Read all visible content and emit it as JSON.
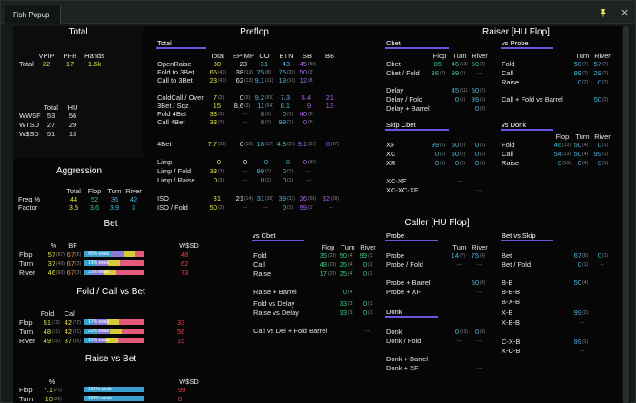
{
  "window": {
    "tab_title": "Fish Popup",
    "close_glyph": "×"
  },
  "total": {
    "header": "Total",
    "cols": [
      "VPIP",
      "PFR",
      "Hands"
    ],
    "row_label": "Total",
    "vpip": "22",
    "pfr": "17",
    "hands": "1.6k",
    "cols2": [
      "Total",
      "HU"
    ],
    "rows": [
      {
        "label": "WWSF",
        "total": "53",
        "hu": "56"
      },
      {
        "label": "WTSD",
        "total": "27",
        "hu": "29"
      },
      {
        "label": "W$SD",
        "total": "51",
        "hu": "13"
      }
    ]
  },
  "aggression": {
    "header": "Aggression",
    "cols": [
      "Total",
      "Flop",
      "Turn",
      "River"
    ],
    "rows": [
      {
        "label": "Freq %",
        "v": [
          "44",
          "52",
          "36",
          "42"
        ]
      },
      {
        "label": "Factor",
        "v": [
          "3.5",
          "3.6",
          "3.9",
          "3"
        ]
      }
    ]
  },
  "bet": {
    "header": "Bet",
    "cols": [
      "%",
      "BF",
      "W$SD"
    ],
    "rows": [
      {
        "label": "Flop",
        "pct": "57",
        "pct_n": "(87)",
        "bf": "67",
        "bf_n": "(6)",
        "bar": "45% weak",
        "wsd": "48",
        "fill": 0.45
      },
      {
        "label": "Turn",
        "pct": "37",
        "pct_n": "(49)",
        "bf": "67",
        "bf_n": "(3)",
        "bar": "19% weak",
        "wsd": "62",
        "fill": 0.19
      },
      {
        "label": "River",
        "pct": "46",
        "pct_n": "(60)",
        "bf": "67",
        "bf_n": "(3)",
        "bar": "13% weak",
        "wsd": "73",
        "fill": 0.13
      }
    ]
  },
  "fcb": {
    "header": "Fold / Call vs Bet",
    "cols": [
      "Fold",
      "Call"
    ],
    "rows": [
      {
        "label": "Flop",
        "fold": "51",
        "fold_n": "(72)",
        "call": "42",
        "call_n": "(72)",
        "bar": "17% weak",
        "wsd": "33",
        "fill": 0.17
      },
      {
        "label": "Turn",
        "fold": "48",
        "fold_n": "(31)",
        "call": "42",
        "call_n": "(31)",
        "bar": "22% weak",
        "wsd": "56",
        "fill": 0.22
      },
      {
        "label": "River",
        "fold": "49",
        "fold_n": "(35)",
        "call": "37",
        "call_n": "(35)",
        "bar": "15% weak",
        "wsd": "15",
        "fill": 0.15
      }
    ]
  },
  "rvb": {
    "header": "Raise vs Bet",
    "cols": [
      "%",
      "W$SD"
    ],
    "rows": [
      {
        "label": "Flop",
        "pct": "7.1",
        "pct_n": "(71)",
        "bar": "100% weak",
        "wsd": "99",
        "fill": 1.0
      },
      {
        "label": "Turn",
        "pct": "10",
        "pct_n": "(30)",
        "bar": "100% weak",
        "wsd": "0",
        "fill": 1.0
      }
    ]
  },
  "preflop": {
    "header": "Preflop",
    "tab": "Total",
    "cols": [
      "Total",
      "EP-MP",
      "CO",
      "BTN",
      "SB",
      "BB"
    ],
    "rows": [
      {
        "label": "OpenRaise",
        "v": [
          [
            "30",
            ""
          ],
          [
            "23",
            ""
          ],
          [
            "31",
            ""
          ],
          [
            "43",
            ""
          ],
          [
            "45",
            "(58)"
          ],
          [
            "",
            ""
          ]
        ]
      },
      {
        "label": "Fold to 3Bet",
        "v": [
          [
            "65",
            "(43)"
          ],
          [
            "38",
            "(13)"
          ],
          [
            "75",
            "(8)"
          ],
          [
            "75",
            "(20)"
          ],
          [
            "50",
            "(2)"
          ],
          [
            "",
            ""
          ]
        ]
      },
      {
        "label": "Call to 3Bet",
        "v": [
          [
            "23",
            "(43)"
          ],
          [
            "62",
            "(13)"
          ],
          [
            "9.1",
            "(11)"
          ],
          [
            "19",
            "(16)"
          ],
          [
            "12",
            "(8)"
          ],
          [
            "",
            ""
          ]
        ]
      },
      {
        "label": "ColdCall / Over",
        "v": [
          [
            "7",
            "(3)"
          ],
          [
            "0",
            "(3)"
          ],
          [
            "9.2",
            "(65)"
          ],
          [
            "7.3",
            ""
          ],
          [
            "5.4",
            ""
          ],
          [
            "21",
            ""
          ]
        ]
      },
      {
        "label": "3Bet / Sqz",
        "v": [
          [
            "15",
            ""
          ],
          [
            "8.6",
            "(3)"
          ],
          [
            "11",
            "(64)"
          ],
          [
            "8.1",
            ""
          ],
          [
            "9",
            ""
          ],
          [
            "13",
            ""
          ]
        ]
      },
      {
        "label": "Fold 4Bet",
        "v": [
          [
            "33",
            "(3)"
          ],
          [
            "--",
            ""
          ],
          [
            "0",
            "(1)"
          ],
          [
            "0",
            "(1)"
          ],
          [
            "40",
            "(5)"
          ],
          [
            "",
            ""
          ]
        ]
      },
      {
        "label": "Call 4Bet",
        "v": [
          [
            "33",
            "(3)"
          ],
          [
            "--",
            ""
          ],
          [
            "0",
            "(1)"
          ],
          [
            "99",
            "(1)"
          ],
          [
            "0",
            "(5)"
          ],
          [
            "",
            ""
          ]
        ]
      },
      {
        "label": "4Bet",
        "v": [
          [
            "7.7",
            "(52)"
          ],
          [
            "0",
            "(10)"
          ],
          [
            "18",
            "(17)"
          ],
          [
            "4.8",
            "(21)"
          ],
          [
            "9.1",
            "(22)"
          ],
          [
            "0",
            "(37)"
          ]
        ]
      },
      {
        "label": "Limp",
        "v": [
          [
            "0",
            ""
          ],
          [
            "0",
            ""
          ],
          [
            "0",
            ""
          ],
          [
            "0",
            ""
          ],
          [
            "0",
            "(35)"
          ],
          [
            "",
            ""
          ]
        ]
      },
      {
        "label": "Limp / Fold",
        "v": [
          [
            "33",
            "(3)"
          ],
          [
            "--",
            ""
          ],
          [
            "99",
            "(1)"
          ],
          [
            "0",
            "(1)"
          ],
          [
            "--",
            ""
          ],
          [
            "",
            ""
          ]
        ]
      },
      {
        "label": "Limp / Raise",
        "v": [
          [
            "0",
            "(3)"
          ],
          [
            "--",
            ""
          ],
          [
            "0",
            "(1)"
          ],
          [
            "0",
            "(1)"
          ],
          [
            "--",
            ""
          ],
          [
            "",
            ""
          ]
        ]
      },
      {
        "label": "ISO",
        "v": [
          [
            "31",
            ""
          ],
          [
            "21",
            "(14)"
          ],
          [
            "31",
            "(36)"
          ],
          [
            "39",
            "(33)"
          ],
          [
            "26",
            "(50)"
          ],
          [
            "32",
            "(38)"
          ]
        ]
      },
      {
        "label": "ISO / Fold",
        "v": [
          [
            "50",
            "(2)"
          ],
          [
            "--",
            ""
          ],
          [
            "--",
            ""
          ],
          [
            "0",
            "(1)"
          ],
          [
            "99",
            "(1)"
          ],
          [
            "--",
            ""
          ]
        ]
      }
    ]
  },
  "raiser": {
    "header": "Raiser [HU Flop]",
    "cols": [
      "Flop",
      "Turn",
      "River"
    ],
    "cbet": {
      "title": "Cbet",
      "rows": [
        {
          "label": "Cbet",
          "v": [
            [
              "85",
              ""
            ],
            [
              "46",
              "(13)"
            ],
            [
              "50",
              "(4)"
            ]
          ]
        },
        {
          "label": "Cbet / Fold",
          "v": [
            [
              "86",
              "(7)"
            ],
            [
              "99",
              "(1)"
            ],
            [
              "--",
              ""
            ]
          ]
        }
      ]
    },
    "delay": {
      "rows": [
        {
          "label": "Delay",
          "v": [
            [
              "",
              ""
            ],
            [
              "45",
              "(11)"
            ],
            [
              "50",
              "(2)"
            ]
          ]
        },
        {
          "label": "Delay / Fold",
          "v": [
            [
              "",
              ""
            ],
            [
              "0",
              "(1)"
            ],
            [
              "99",
              "(1)"
            ]
          ]
        },
        {
          "label": "Delay + Barrel",
          "v": [
            [
              "",
              ""
            ],
            [
              "",
              ""
            ],
            [
              "0",
              "(3)"
            ]
          ]
        }
      ]
    },
    "skip": {
      "title": "Skip Cbet",
      "rows": [
        {
          "label": "XF",
          "v": [
            [
              "99",
              "(1)"
            ],
            [
              "50",
              "(2)"
            ],
            [
              "0",
              "(1)"
            ]
          ]
        },
        {
          "label": "XC",
          "v": [
            [
              "0",
              "(1)"
            ],
            [
              "50",
              "(2)"
            ],
            [
              "0",
              "(1)"
            ]
          ]
        },
        {
          "label": "XR",
          "v": [
            [
              "0",
              "(1)"
            ],
            [
              "0",
              "(2)"
            ],
            [
              "0",
              "(1)"
            ]
          ]
        },
        {
          "label": "XC-XF",
          "v": [
            [
              "",
              ""
            ],
            [
              "--",
              ""
            ],
            [
              "",
              ""
            ]
          ]
        },
        {
          "label": "XC-XC-XF",
          "v": [
            [
              "",
              ""
            ],
            [
              "",
              ""
            ],
            [
              "--",
              ""
            ]
          ]
        }
      ]
    },
    "probe": {
      "title": "vs Probe",
      "cols": [
        "Turn",
        "River"
      ],
      "rows": [
        {
          "label": "Fold",
          "v": [
            [
              "50",
              "(7)"
            ],
            [
              "57",
              "(7)"
            ]
          ]
        },
        {
          "label": "Call",
          "v": [
            [
              "99",
              "(7)"
            ],
            [
              "29",
              "(7)"
            ]
          ]
        },
        {
          "label": "Raise",
          "v": [
            [
              "0",
              "(7)"
            ],
            [
              "0",
              "(7)"
            ]
          ]
        },
        {
          "label": "Call + Fold vs Barrel",
          "v": [
            [
              "",
              ""
            ],
            [
              "50",
              "(2)"
            ]
          ]
        }
      ]
    },
    "donk": {
      "title": "vs Donk",
      "cols": [
        "Flop",
        "Turn",
        "River"
      ],
      "rows": [
        {
          "label": "Fold",
          "v": [
            [
              "46",
              "(13)"
            ],
            [
              "50",
              "(4)"
            ],
            [
              "0",
              "(1)"
            ]
          ]
        },
        {
          "label": "Call",
          "v": [
            [
              "54",
              "(13)"
            ],
            [
              "50",
              "(4)"
            ],
            [
              "99",
              "(1)"
            ]
          ]
        },
        {
          "label": "Raise",
          "v": [
            [
              "0",
              "(13)"
            ],
            [
              "0",
              "(4)"
            ],
            [
              "0",
              "(1)"
            ]
          ]
        }
      ]
    }
  },
  "caller": {
    "header": "Caller [HU Flop]",
    "vscbet": {
      "title": "vs Cbet",
      "cols": [
        "Flop",
        "Turn",
        "River"
      ],
      "rows": [
        {
          "label": "Fold",
          "v": [
            [
              "35",
              "(23)"
            ],
            [
              "50",
              "(4)"
            ],
            [
              "99",
              "(1)"
            ]
          ]
        },
        {
          "label": "Call",
          "v": [
            [
              "48",
              "(23)"
            ],
            [
              "25",
              "(4)"
            ],
            [
              "0",
              "(1)"
            ]
          ]
        },
        {
          "label": "Raise",
          "v": [
            [
              "17",
              "(23)"
            ],
            [
              "25",
              "(4)"
            ],
            [
              "0",
              "(1)"
            ]
          ]
        },
        {
          "label": "Raise + Barrel",
          "v": [
            [
              "",
              ""
            ],
            [
              "0",
              "(4)"
            ],
            [
              "",
              ""
            ]
          ]
        },
        {
          "label": "Fold vs Delay",
          "v": [
            [
              "",
              ""
            ],
            [
              "33",
              "(3)"
            ],
            [
              "0",
              "(1)"
            ]
          ]
        },
        {
          "label": "Raise vs Delay",
          "v": [
            [
              "",
              ""
            ],
            [
              "33",
              "(3)"
            ],
            [
              "0",
              "(1)"
            ]
          ]
        },
        {
          "label": "Call vs Del + Fold Barrel",
          "v": [
            [
              "",
              ""
            ],
            [
              "",
              ""
            ],
            [
              "--",
              ""
            ]
          ]
        }
      ]
    },
    "probe": {
      "title": "Probe",
      "cols": [
        "Turn",
        "River"
      ],
      "rows": [
        {
          "label": "Probe",
          "v": [
            [
              "14",
              "(7)"
            ],
            [
              "75",
              "(4)"
            ]
          ]
        },
        {
          "label": "Probe / Fold",
          "v": [
            [
              "--",
              ""
            ],
            [
              "--",
              ""
            ]
          ]
        },
        {
          "label": "Probe + Barrel",
          "v": [
            [
              "",
              ""
            ],
            [
              "50",
              "(4)"
            ]
          ]
        },
        {
          "label": "Probe + XF",
          "v": [
            [
              "",
              ""
            ],
            [
              "--",
              ""
            ]
          ]
        }
      ]
    },
    "donk": {
      "title": "Donk",
      "rows": [
        {
          "label": "Donk",
          "v": [
            [
              "0",
              "(23)"
            ],
            [
              "0",
              "(4)"
            ]
          ]
        },
        {
          "label": "Donk / Fold",
          "v": [
            [
              "--",
              ""
            ],
            [
              "--",
              ""
            ]
          ]
        },
        {
          "label": "Donk + Barrel",
          "v": [
            [
              "",
              ""
            ],
            [
              "--",
              ""
            ]
          ]
        },
        {
          "label": "Donk + XF",
          "v": [
            [
              "",
              ""
            ],
            [
              "--",
              ""
            ]
          ]
        }
      ]
    },
    "bvs": {
      "title": "Bet vs Skip",
      "rows": [
        {
          "label": "Bet",
          "v": [
            [
              "67",
              "(6)"
            ],
            [
              "0",
              "(1)"
            ]
          ]
        },
        {
          "label": "Bet / Fold",
          "v": [
            [
              "0",
              "(1)"
            ],
            [
              "--",
              ""
            ]
          ]
        },
        {
          "label": "B-B",
          "v": [
            [
              "50",
              "(4)"
            ]
          ]
        },
        {
          "label": "B-B-B",
          "v": [
            [
              "",
              ""
            ]
          ]
        },
        {
          "label": "B-X-B",
          "v": [
            [
              "",
              ""
            ]
          ]
        },
        {
          "label": "X-B",
          "v": [
            [
              "99",
              "(2)"
            ]
          ]
        },
        {
          "label": "X-B-B",
          "v": [
            [
              "--",
              ""
            ]
          ]
        },
        {
          "label": "C-X-B",
          "v": [
            [
              "99",
              "(1)"
            ]
          ]
        },
        {
          "label": "X-C-B",
          "v": [
            [
              "--",
              ""
            ]
          ]
        }
      ]
    }
  },
  "colors": {
    "accent": "#6a55e0",
    "yellow": "#e8e34a",
    "green": "#3cc97a",
    "cyan": "#4db8e0",
    "purple": "#b160f0",
    "red": "#ff3a4a"
  }
}
